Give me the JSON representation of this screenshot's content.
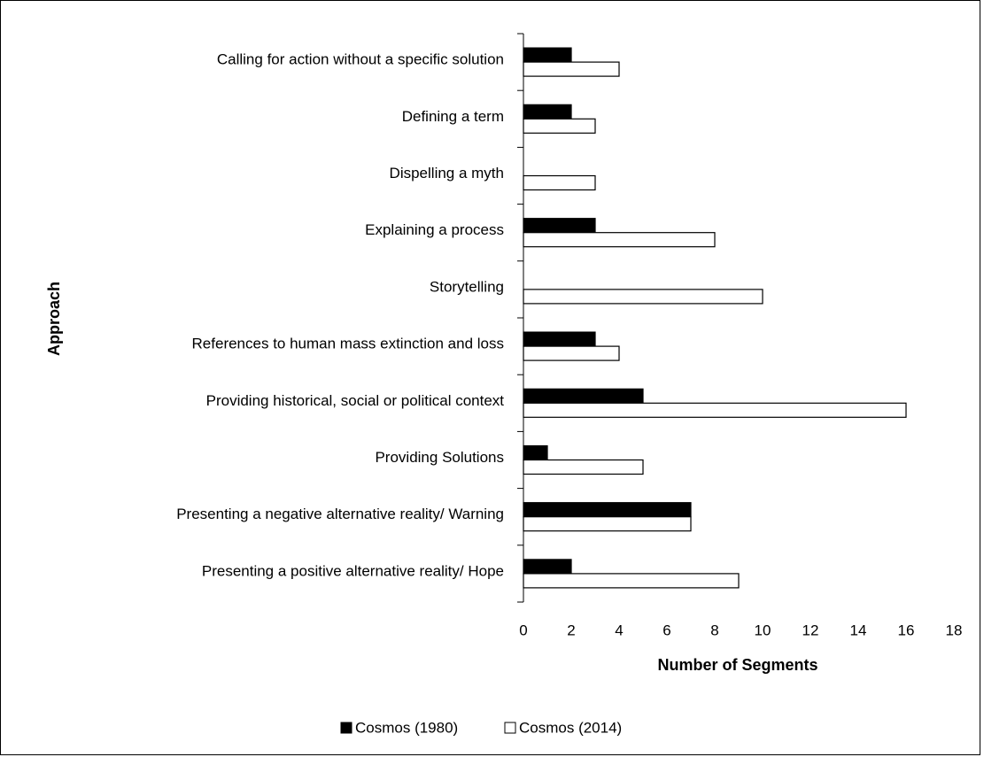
{
  "chart_data": {
    "type": "bar",
    "orientation": "horizontal",
    "categories": [
      "Calling for action without a specific solution",
      "Defining a term",
      "Dispelling a myth",
      "Explaining a process",
      "Storytelling",
      "References to human mass extinction and loss",
      "Providing historical, social or political context",
      "Providing Solutions",
      "Presenting a negative alternative reality/ Warning",
      "Presenting a positive alternative reality/ Hope"
    ],
    "series": [
      {
        "name": "Cosmos (1980)",
        "color": "#000000",
        "values": [
          2,
          2,
          0,
          3,
          0,
          3,
          5,
          1,
          7,
          2
        ]
      },
      {
        "name": "Cosmos (2014)",
        "color": "#ffffff",
        "values": [
          4,
          3,
          3,
          8,
          10,
          4,
          16,
          5,
          7,
          9
        ]
      }
    ],
    "xlabel": "Number of Segments",
    "ylabel": "Approach",
    "xlim": [
      0,
      18
    ],
    "xticks": [
      0,
      2,
      4,
      6,
      8,
      10,
      12,
      14,
      16,
      18
    ],
    "grid": false,
    "legend": "bottom"
  }
}
